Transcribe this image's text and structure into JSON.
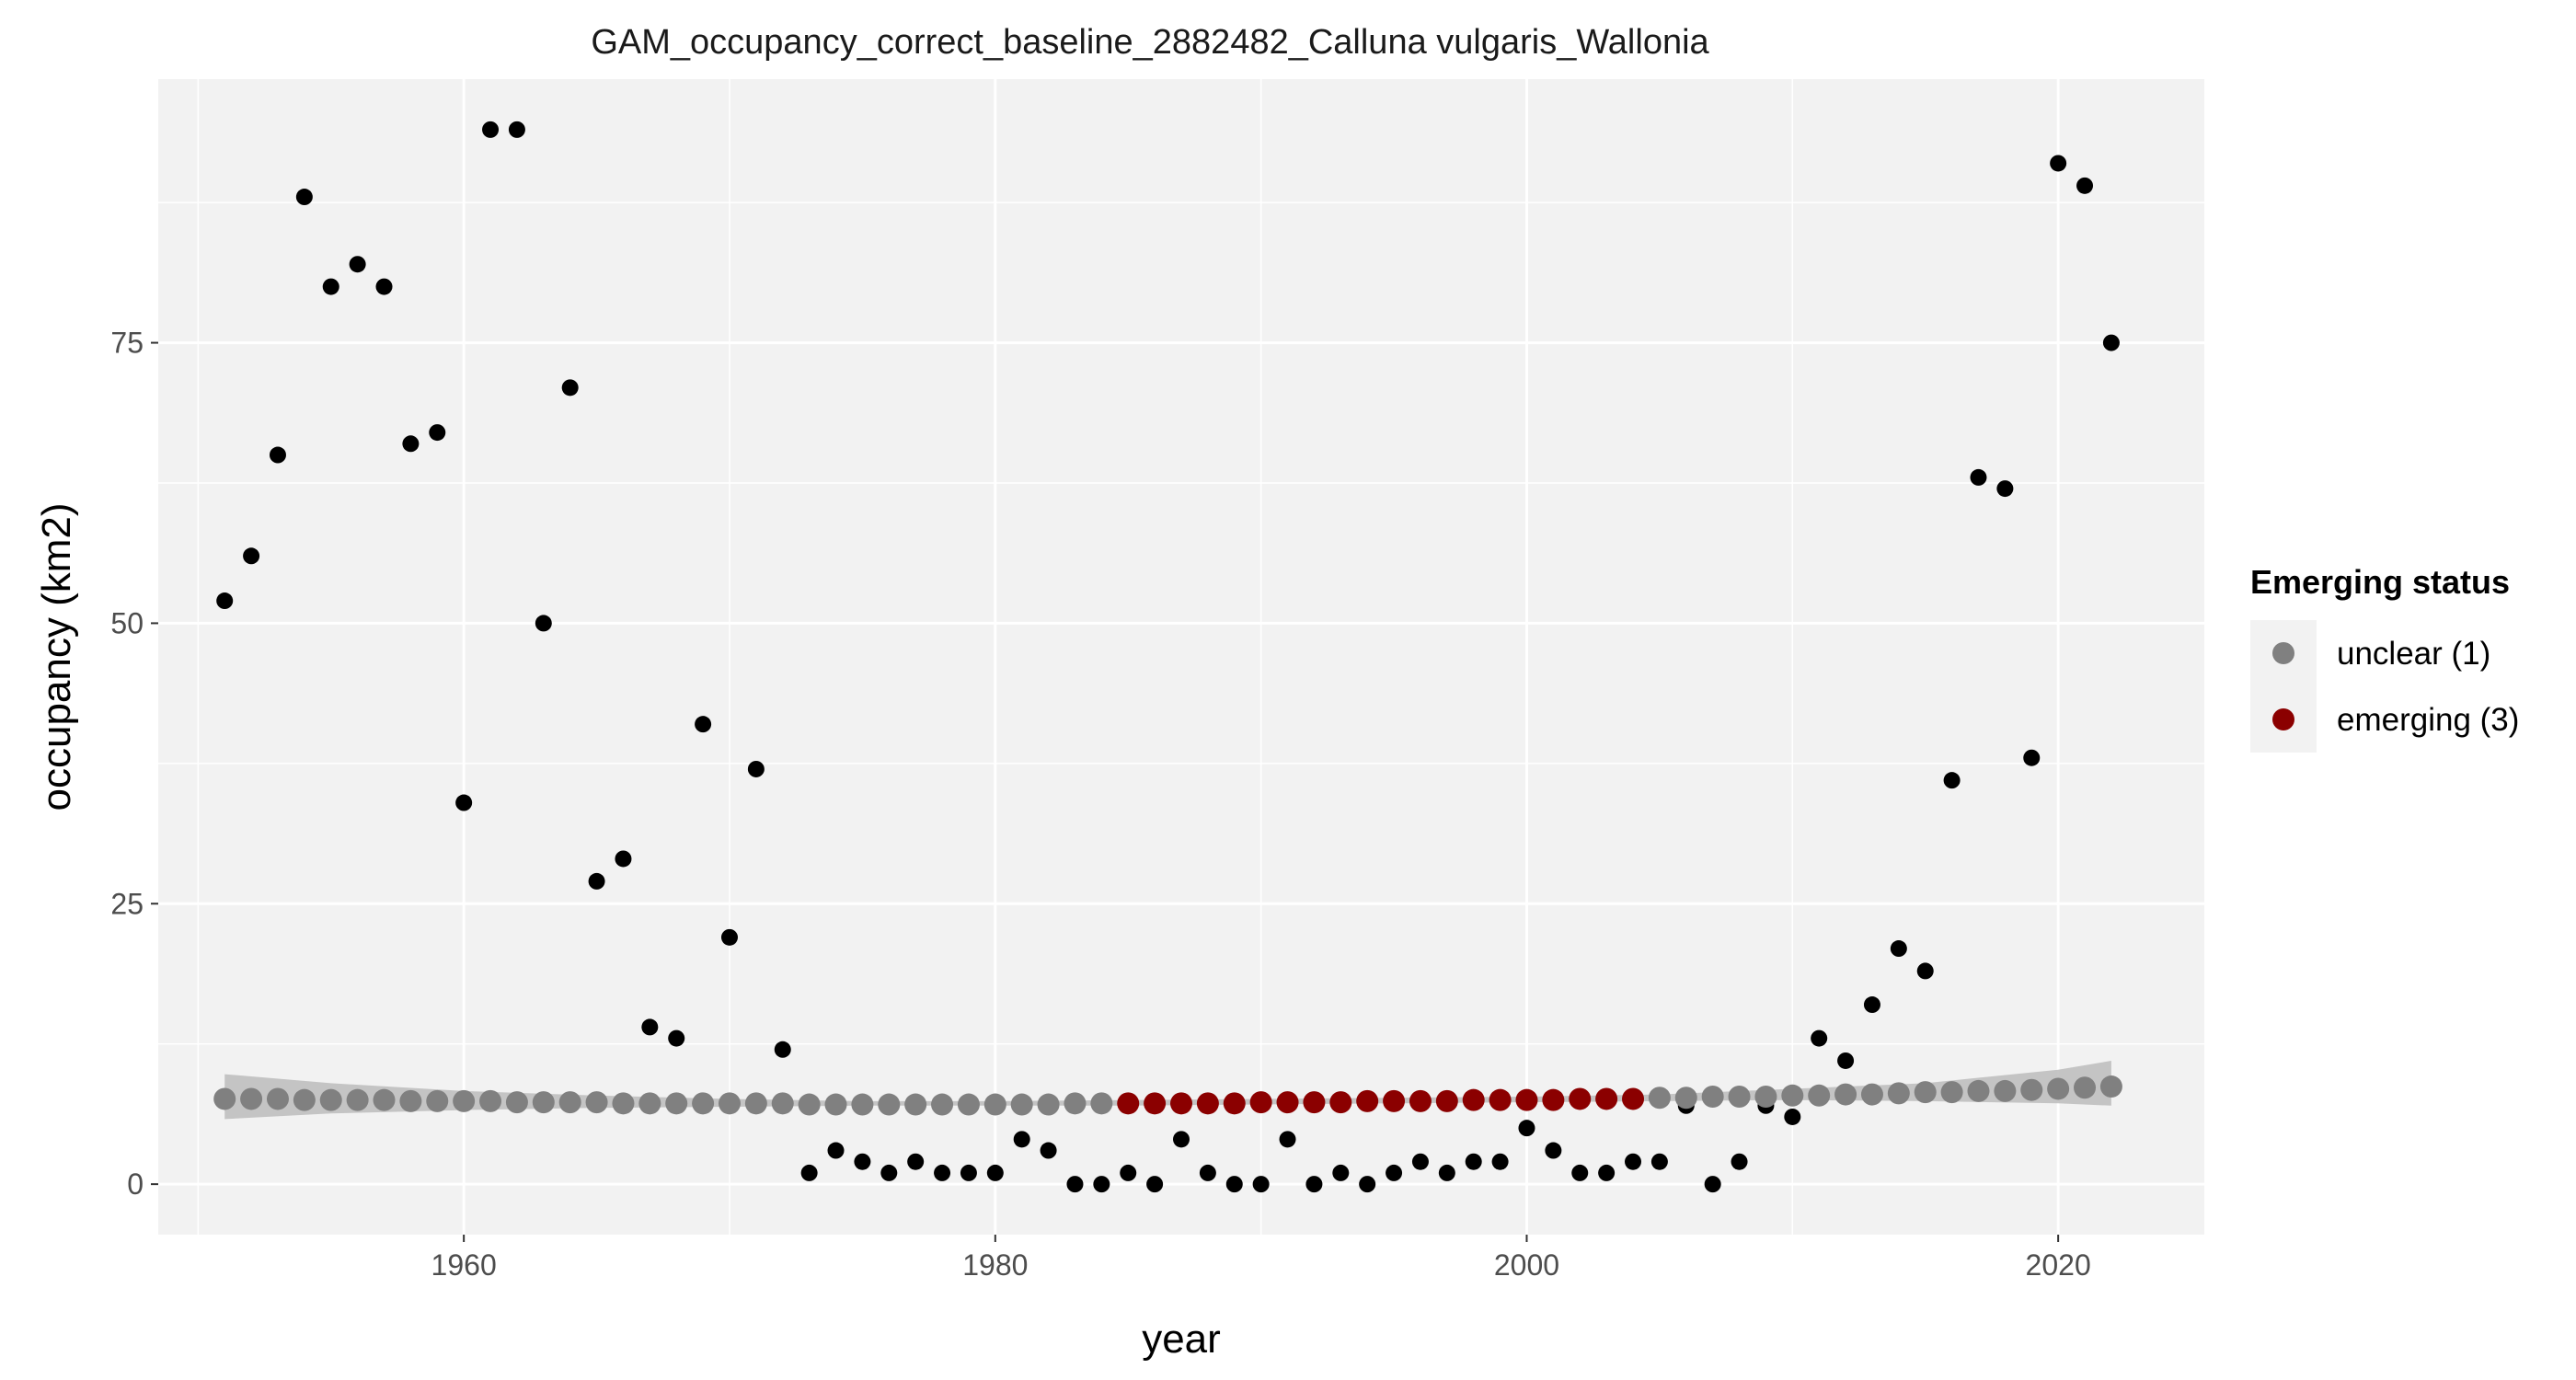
{
  "chart_data": {
    "type": "scatter",
    "title": "GAM_occupancy_correct_baseline_2882482_Calluna vulgaris_Wallonia",
    "xlabel": "year",
    "ylabel": "occupancy (km2)",
    "xlim": [
      1948.5,
      2025.5
    ],
    "ylim": [
      -4.5,
      98.5
    ],
    "x_ticks": [
      1960,
      1980,
      2000,
      2020
    ],
    "y_ticks": [
      0,
      25,
      50,
      75
    ],
    "grid": true,
    "legend_position": "right",
    "legend_title": "Emerging status",
    "observed": {
      "color": "#000000",
      "x": [
        1951,
        1952,
        1953,
        1954,
        1955,
        1956,
        1957,
        1958,
        1959,
        1960,
        1961,
        1962,
        1963,
        1964,
        1965,
        1966,
        1967,
        1968,
        1969,
        1970,
        1971,
        1972,
        1973,
        1974,
        1975,
        1976,
        1977,
        1978,
        1979,
        1980,
        1981,
        1982,
        1983,
        1984,
        1985,
        1986,
        1987,
        1988,
        1989,
        1990,
        1991,
        1992,
        1993,
        1994,
        1995,
        1996,
        1997,
        1998,
        1999,
        2000,
        2001,
        2002,
        2003,
        2004,
        2005,
        2006,
        2007,
        2008,
        2009,
        2010,
        2011,
        2012,
        2013,
        2014,
        2015,
        2016,
        2017,
        2018,
        2019,
        2020,
        2021,
        2022
      ],
      "y": [
        52,
        56,
        65,
        88,
        80,
        82,
        80,
        66,
        67,
        34,
        94,
        94,
        50,
        71,
        27,
        29,
        14,
        13,
        41,
        22,
        37,
        12,
        1,
        3,
        2,
        1,
        2,
        1,
        1,
        1,
        4,
        3,
        0,
        0,
        1,
        0,
        4,
        1,
        0,
        0,
        4,
        0,
        1,
        0,
        1,
        2,
        1,
        2,
        2,
        5,
        3,
        1,
        1,
        2,
        2,
        7,
        0,
        2,
        7,
        6,
        13,
        11,
        16,
        21,
        19,
        36,
        63,
        62,
        38,
        91,
        89,
        75
      ]
    },
    "series": [
      {
        "name": "unclear (1)",
        "color": "#808080",
        "x": [
          1951,
          1952,
          1953,
          1954,
          1955,
          1956,
          1957,
          1958,
          1959,
          1960,
          1961,
          1962,
          1963,
          1964,
          1965,
          1966,
          1967,
          1968,
          1969,
          1970,
          1971,
          1972,
          1973,
          1974,
          1975,
          1976,
          1977,
          1978,
          1979,
          1980,
          1981,
          1982,
          1983,
          1984,
          2005,
          2006,
          2007,
          2008,
          2009,
          2010,
          2011,
          2012,
          2013,
          2014,
          2015,
          2016,
          2017,
          2018,
          2019,
          2020,
          2021,
          2022
        ],
        "y": [
          7.6,
          7.6,
          7.6,
          7.5,
          7.5,
          7.5,
          7.5,
          7.4,
          7.4,
          7.4,
          7.4,
          7.3,
          7.3,
          7.3,
          7.3,
          7.2,
          7.2,
          7.2,
          7.2,
          7.2,
          7.2,
          7.2,
          7.1,
          7.1,
          7.1,
          7.1,
          7.1,
          7.1,
          7.1,
          7.1,
          7.1,
          7.1,
          7.2,
          7.2,
          7.7,
          7.7,
          7.8,
          7.8,
          7.8,
          7.9,
          7.9,
          8.0,
          8.0,
          8.1,
          8.2,
          8.2,
          8.3,
          8.3,
          8.4,
          8.5,
          8.6,
          8.7
        ]
      },
      {
        "name": "emerging (3)",
        "color": "#8B0000",
        "x": [
          1985,
          1986,
          1987,
          1988,
          1989,
          1990,
          1991,
          1992,
          1993,
          1994,
          1995,
          1996,
          1997,
          1998,
          1999,
          2000,
          2001,
          2002,
          2003,
          2004
        ],
        "y": [
          7.2,
          7.2,
          7.2,
          7.2,
          7.2,
          7.3,
          7.3,
          7.3,
          7.3,
          7.4,
          7.4,
          7.4,
          7.4,
          7.5,
          7.5,
          7.5,
          7.5,
          7.6,
          7.6,
          7.6
        ]
      }
    ],
    "confidence_band": {
      "color": "#bfbfbf",
      "x": [
        1951,
        1955,
        1960,
        1965,
        1970,
        1975,
        1980,
        1985,
        1990,
        1995,
        2000,
        2005,
        2010,
        2015,
        2020,
        2022
      ],
      "lower": [
        5.8,
        6.3,
        6.6,
        6.8,
        6.9,
        7.0,
        7.0,
        7.0,
        7.1,
        7.2,
        7.3,
        7.4,
        7.5,
        7.4,
        7.2,
        7.0
      ],
      "upper": [
        9.8,
        9.0,
        8.3,
        7.9,
        7.6,
        7.4,
        7.4,
        7.5,
        7.6,
        7.7,
        7.8,
        8.0,
        8.5,
        9.0,
        10.2,
        11.0
      ]
    }
  }
}
